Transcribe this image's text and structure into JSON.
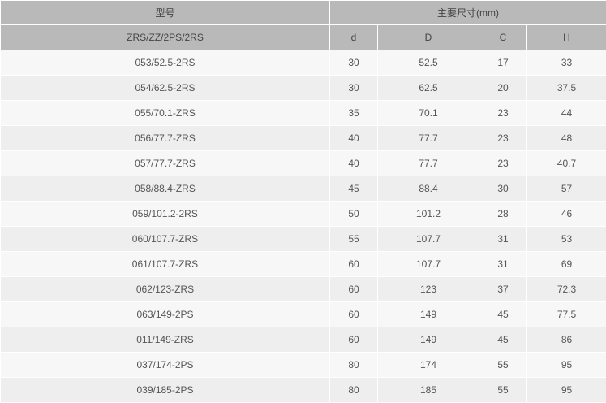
{
  "header": {
    "model": "型号",
    "dimensions": "主要尺寸(mm)",
    "variant": "ZRS/ZZ/2PS/2RS",
    "cols": [
      "d",
      "D",
      "C",
      "H"
    ]
  },
  "rows": [
    [
      "053/52.5-2RS",
      "30",
      "52.5",
      "17",
      "33"
    ],
    [
      "054/62.5-2RS",
      "30",
      "62.5",
      "20",
      "37.5"
    ],
    [
      "055/70.1-ZRS",
      "35",
      "70.1",
      "23",
      "44"
    ],
    [
      "056/77.7-ZRS",
      "40",
      "77.7",
      "23",
      "48"
    ],
    [
      "057/77.7-ZRS",
      "40",
      "77.7",
      "23",
      "40.7"
    ],
    [
      "058/88.4-ZRS",
      "45",
      "88.4",
      "30",
      "57"
    ],
    [
      "059/101.2-2RS",
      "50",
      "101.2",
      "28",
      "46"
    ],
    [
      "060/107.7-ZRS",
      "55",
      "107.7",
      "31",
      "53"
    ],
    [
      "061/107.7-ZRS",
      "60",
      "107.7",
      "31",
      "69"
    ],
    [
      "062/123-ZRS",
      "60",
      "123",
      "37",
      "72.3"
    ],
    [
      "063/149-2PS",
      "60",
      "149",
      "45",
      "77.5"
    ],
    [
      "011/149-ZRS",
      "60",
      "149",
      "45",
      "86"
    ],
    [
      "037/174-2PS",
      "80",
      "174",
      "55",
      "95"
    ],
    [
      "039/185-2PS",
      "80",
      "185",
      "55",
      "95"
    ]
  ]
}
